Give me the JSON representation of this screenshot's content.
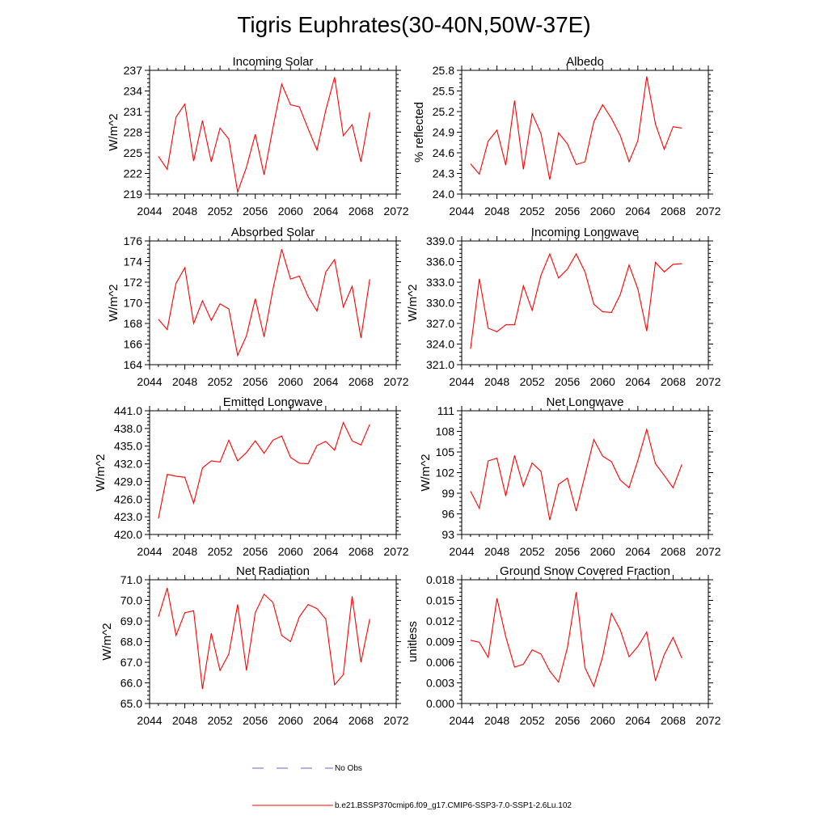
{
  "figure": {
    "title": "Tigris Euphrates(30-40N,50W-37E)"
  },
  "legend": {
    "obs_label": "No Obs",
    "model_label": "b.e21.BSSP370cmip6.f09_g17.CMIP6-SSP3-7.0-SSP1-2.6Lu.102",
    "obs_color": "#6666cc",
    "model_color": "#ff0000"
  },
  "chart_data": [
    {
      "type": "line",
      "title": "Incoming Solar",
      "ylabel": "W/m^2",
      "xlabel": "",
      "xlim": [
        2044,
        2072
      ],
      "ylim": [
        219,
        237
      ],
      "xticks": [
        "2044",
        "2048",
        "2052",
        "2056",
        "2060",
        "2064",
        "2068",
        "2072"
      ],
      "yticks": [
        "219",
        "222",
        "225",
        "228",
        "231",
        "234",
        "237"
      ],
      "x": [
        2045,
        2046,
        2047,
        2048,
        2049,
        2050,
        2051,
        2052,
        2053,
        2054,
        2055,
        2056,
        2057,
        2058,
        2059,
        2060,
        2061,
        2062,
        2063,
        2064,
        2065,
        2066,
        2067,
        2068,
        2069
      ],
      "values": [
        224.5,
        222.6,
        230.2,
        232.1,
        223.8,
        229.7,
        223.7,
        228.6,
        227.0,
        219.3,
        222.9,
        227.7,
        221.8,
        228.6,
        235.0,
        232.0,
        231.7,
        228.5,
        225.4,
        231.2,
        236.0,
        227.5,
        229.1,
        223.7,
        230.9
      ]
    },
    {
      "type": "line",
      "title": "Albedo",
      "ylabel": "% reflected",
      "xlabel": "",
      "xlim": [
        2044,
        2072
      ],
      "ylim": [
        24.0,
        25.8
      ],
      "xticks": [
        "2044",
        "2048",
        "2052",
        "2056",
        "2060",
        "2064",
        "2068",
        "2072"
      ],
      "yticks": [
        "24.0",
        "24.3",
        "24.6",
        "24.9",
        "25.2",
        "25.5",
        "25.8"
      ],
      "x": [
        2045,
        2046,
        2047,
        2048,
        2049,
        2050,
        2051,
        2052,
        2053,
        2054,
        2055,
        2056,
        2057,
        2058,
        2059,
        2060,
        2061,
        2062,
        2063,
        2064,
        2065,
        2066,
        2067,
        2068,
        2069
      ],
      "values": [
        24.44,
        24.29,
        24.77,
        24.93,
        24.42,
        25.36,
        24.36,
        25.17,
        24.88,
        24.21,
        24.89,
        24.73,
        24.43,
        24.47,
        25.05,
        25.3,
        25.1,
        24.85,
        24.47,
        24.78,
        25.71,
        25.02,
        24.65,
        24.98,
        24.96
      ]
    },
    {
      "type": "line",
      "title": "Absorbed Solar",
      "ylabel": "W/m^2",
      "xlabel": "",
      "xlim": [
        2044,
        2072
      ],
      "ylim": [
        164,
        176
      ],
      "xticks": [
        "2044",
        "2048",
        "2052",
        "2056",
        "2060",
        "2064",
        "2068",
        "2072"
      ],
      "yticks": [
        "164",
        "166",
        "168",
        "170",
        "172",
        "174",
        "176"
      ],
      "x": [
        2045,
        2046,
        2047,
        2048,
        2049,
        2050,
        2051,
        2052,
        2053,
        2054,
        2055,
        2056,
        2057,
        2058,
        2059,
        2060,
        2061,
        2062,
        2063,
        2064,
        2065,
        2066,
        2067,
        2068,
        2069
      ],
      "values": [
        168.4,
        167.4,
        171.9,
        173.4,
        168.0,
        170.2,
        168.3,
        169.9,
        169.4,
        164.9,
        166.8,
        170.4,
        166.7,
        171.3,
        175.2,
        172.3,
        172.6,
        170.6,
        169.2,
        173.0,
        174.2,
        169.6,
        171.6,
        166.6,
        172.3
      ]
    },
    {
      "type": "line",
      "title": "Incoming Longwave",
      "ylabel": "W/m^2",
      "xlabel": "",
      "xlim": [
        2044,
        2072
      ],
      "ylim": [
        321.0,
        339.0
      ],
      "xticks": [
        "2044",
        "2048",
        "2052",
        "2056",
        "2060",
        "2064",
        "2068",
        "2072"
      ],
      "yticks": [
        "321.0",
        "324.0",
        "327.0",
        "330.0",
        "333.0",
        "336.0",
        "339.0"
      ],
      "x": [
        2045,
        2046,
        2047,
        2048,
        2049,
        2050,
        2051,
        2052,
        2053,
        2054,
        2055,
        2056,
        2057,
        2058,
        2059,
        2060,
        2061,
        2062,
        2063,
        2064,
        2065,
        2066,
        2067,
        2068,
        2069
      ],
      "values": [
        323.3,
        333.5,
        326.3,
        325.8,
        326.8,
        326.8,
        332.5,
        328.9,
        334.0,
        337.1,
        333.6,
        334.9,
        337.1,
        334.5,
        329.8,
        328.7,
        328.6,
        331.2,
        335.5,
        332.0,
        325.9,
        335.9,
        334.5,
        335.6,
        335.7
      ]
    },
    {
      "type": "line",
      "title": "Emitted Longwave",
      "ylabel": "W/m^2",
      "xlabel": "",
      "xlim": [
        2044,
        2072
      ],
      "ylim": [
        420.0,
        441.0
      ],
      "xticks": [
        "2044",
        "2048",
        "2052",
        "2056",
        "2060",
        "2064",
        "2068",
        "2072"
      ],
      "yticks": [
        "420.0",
        "423.0",
        "426.0",
        "429.0",
        "432.0",
        "435.0",
        "438.0",
        "441.0"
      ],
      "x": [
        2045,
        2046,
        2047,
        2048,
        2049,
        2050,
        2051,
        2052,
        2053,
        2054,
        2055,
        2056,
        2057,
        2058,
        2059,
        2060,
        2061,
        2062,
        2063,
        2064,
        2065,
        2066,
        2067,
        2068,
        2069
      ],
      "values": [
        422.7,
        430.2,
        429.9,
        429.7,
        425.3,
        431.3,
        432.5,
        432.3,
        436.0,
        432.5,
        433.9,
        435.9,
        433.8,
        436.0,
        436.7,
        433.1,
        432.1,
        432.0,
        435.1,
        435.8,
        434.3,
        439.0,
        435.9,
        435.2,
        438.7
      ]
    },
    {
      "type": "line",
      "title": "Net Longwave",
      "ylabel": "W/m^2",
      "xlabel": "",
      "xlim": [
        2044,
        2072
      ],
      "ylim": [
        93,
        111
      ],
      "xticks": [
        "2044",
        "2048",
        "2052",
        "2056",
        "2060",
        "2064",
        "2068",
        "2072"
      ],
      "yticks": [
        "93",
        "96",
        "99",
        "102",
        "105",
        "108",
        "111"
      ],
      "x": [
        2045,
        2046,
        2047,
        2048,
        2049,
        2050,
        2051,
        2052,
        2053,
        2054,
        2055,
        2056,
        2057,
        2058,
        2059,
        2060,
        2061,
        2062,
        2063,
        2064,
        2065,
        2066,
        2067,
        2068,
        2069
      ],
      "values": [
        99.3,
        96.8,
        103.7,
        104.1,
        98.6,
        104.5,
        100.0,
        103.4,
        102.2,
        95.1,
        100.3,
        101.2,
        96.4,
        101.6,
        106.8,
        104.4,
        103.6,
        100.9,
        99.8,
        103.8,
        108.3,
        103.3,
        101.6,
        99.8,
        103.2
      ]
    },
    {
      "type": "line",
      "title": "Net Radiation",
      "ylabel": "W/m^2",
      "xlabel": "",
      "xlim": [
        2044,
        2072
      ],
      "ylim": [
        65.0,
        71.0
      ],
      "xticks": [
        "2044",
        "2048",
        "2052",
        "2056",
        "2060",
        "2064",
        "2068",
        "2072"
      ],
      "yticks": [
        "65.0",
        "66.0",
        "67.0",
        "68.0",
        "69.0",
        "70.0",
        "71.0"
      ],
      "x": [
        2045,
        2046,
        2047,
        2048,
        2049,
        2050,
        2051,
        2052,
        2053,
        2054,
        2055,
        2056,
        2057,
        2058,
        2059,
        2060,
        2061,
        2062,
        2063,
        2064,
        2065,
        2066,
        2067,
        2068,
        2069
      ],
      "values": [
        69.2,
        70.6,
        68.3,
        69.4,
        69.5,
        65.7,
        68.4,
        66.6,
        67.4,
        69.8,
        66.6,
        69.4,
        70.3,
        69.9,
        68.3,
        68.0,
        69.2,
        69.8,
        69.6,
        69.1,
        65.9,
        66.4,
        70.2,
        67.0,
        69.1
      ]
    },
    {
      "type": "line",
      "title": "Ground Snow Covered Fraction",
      "ylabel": "unitless",
      "xlabel": "",
      "xlim": [
        2044,
        2072
      ],
      "ylim": [
        0.0,
        0.018
      ],
      "xticks": [
        "2044",
        "2048",
        "2052",
        "2056",
        "2060",
        "2064",
        "2068",
        "2072"
      ],
      "yticks": [
        "0.000",
        "0.003",
        "0.006",
        "0.009",
        "0.012",
        "0.015",
        "0.018"
      ],
      "x": [
        2045,
        2046,
        2047,
        2048,
        2049,
        2050,
        2051,
        2052,
        2053,
        2054,
        2055,
        2056,
        2057,
        2058,
        2059,
        2060,
        2061,
        2062,
        2063,
        2064,
        2065,
        2066,
        2067,
        2068,
        2069
      ],
      "values": [
        0.0092,
        0.0089,
        0.0067,
        0.0153,
        0.0097,
        0.0053,
        0.0057,
        0.0078,
        0.0072,
        0.0047,
        0.0031,
        0.0081,
        0.0162,
        0.0052,
        0.0025,
        0.0068,
        0.0131,
        0.0107,
        0.0068,
        0.0083,
        0.0104,
        0.0033,
        0.0071,
        0.0096,
        0.0066
      ]
    }
  ]
}
